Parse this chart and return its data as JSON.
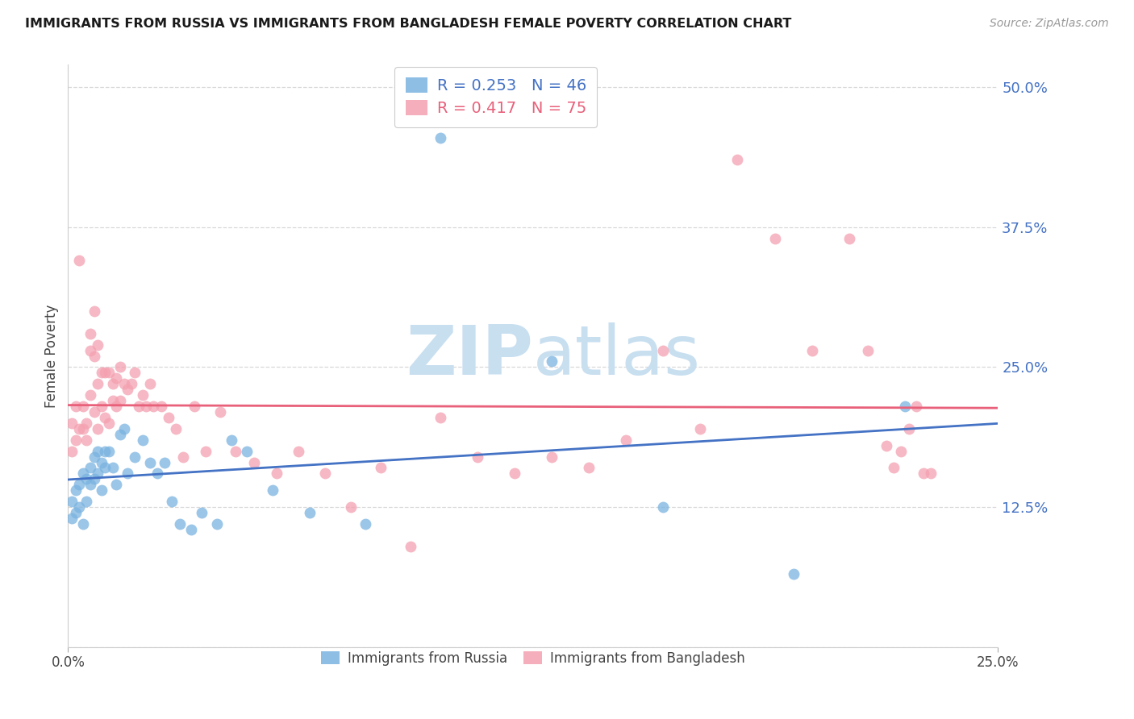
{
  "title": "IMMIGRANTS FROM RUSSIA VS IMMIGRANTS FROM BANGLADESH FEMALE POVERTY CORRELATION CHART",
  "source": "Source: ZipAtlas.com",
  "ylabel": "Female Poverty",
  "yticks": [
    0.0,
    0.125,
    0.25,
    0.375,
    0.5
  ],
  "ytick_labels": [
    "",
    "12.5%",
    "25.0%",
    "37.5%",
    "50.0%"
  ],
  "xlim": [
    0.0,
    0.25
  ],
  "ylim": [
    0.0,
    0.52
  ],
  "russia_R": 0.253,
  "russia_N": 46,
  "bangladesh_R": 0.417,
  "bangladesh_N": 75,
  "russia_color": "#7ab3e0",
  "bangladesh_color": "#f4a0b0",
  "russia_line_color": "#4472c4",
  "bangladesh_line_color": "#e8607a",
  "watermark_color": "#c8dff0",
  "background_color": "#ffffff",
  "grid_color": "#d8d8d8",
  "ytick_color": "#4472c4",
  "russia_scatter_x": [
    0.001,
    0.001,
    0.002,
    0.002,
    0.003,
    0.003,
    0.004,
    0.004,
    0.005,
    0.005,
    0.006,
    0.006,
    0.007,
    0.007,
    0.008,
    0.008,
    0.009,
    0.009,
    0.01,
    0.01,
    0.011,
    0.012,
    0.013,
    0.014,
    0.015,
    0.016,
    0.018,
    0.02,
    0.022,
    0.024,
    0.026,
    0.028,
    0.03,
    0.033,
    0.036,
    0.04,
    0.044,
    0.048,
    0.055,
    0.065,
    0.08,
    0.1,
    0.13,
    0.16,
    0.195,
    0.225
  ],
  "russia_scatter_y": [
    0.13,
    0.115,
    0.14,
    0.12,
    0.145,
    0.125,
    0.155,
    0.11,
    0.15,
    0.13,
    0.16,
    0.145,
    0.17,
    0.15,
    0.155,
    0.175,
    0.14,
    0.165,
    0.175,
    0.16,
    0.175,
    0.16,
    0.145,
    0.19,
    0.195,
    0.155,
    0.17,
    0.185,
    0.165,
    0.155,
    0.165,
    0.13,
    0.11,
    0.105,
    0.12,
    0.11,
    0.185,
    0.175,
    0.14,
    0.12,
    0.11,
    0.455,
    0.255,
    0.125,
    0.065,
    0.215
  ],
  "bangladesh_scatter_x": [
    0.001,
    0.001,
    0.002,
    0.002,
    0.003,
    0.003,
    0.004,
    0.004,
    0.005,
    0.005,
    0.006,
    0.006,
    0.006,
    0.007,
    0.007,
    0.007,
    0.008,
    0.008,
    0.008,
    0.009,
    0.009,
    0.01,
    0.01,
    0.011,
    0.011,
    0.012,
    0.012,
    0.013,
    0.013,
    0.014,
    0.014,
    0.015,
    0.016,
    0.017,
    0.018,
    0.019,
    0.02,
    0.021,
    0.022,
    0.023,
    0.025,
    0.027,
    0.029,
    0.031,
    0.034,
    0.037,
    0.041,
    0.045,
    0.05,
    0.056,
    0.062,
    0.069,
    0.076,
    0.084,
    0.092,
    0.1,
    0.11,
    0.12,
    0.13,
    0.14,
    0.15,
    0.16,
    0.17,
    0.18,
    0.19,
    0.2,
    0.21,
    0.215,
    0.22,
    0.222,
    0.224,
    0.226,
    0.228,
    0.23,
    0.232
  ],
  "bangladesh_scatter_y": [
    0.2,
    0.175,
    0.215,
    0.185,
    0.345,
    0.195,
    0.215,
    0.195,
    0.2,
    0.185,
    0.28,
    0.265,
    0.225,
    0.3,
    0.26,
    0.21,
    0.27,
    0.235,
    0.195,
    0.245,
    0.215,
    0.245,
    0.205,
    0.245,
    0.2,
    0.235,
    0.22,
    0.24,
    0.215,
    0.25,
    0.22,
    0.235,
    0.23,
    0.235,
    0.245,
    0.215,
    0.225,
    0.215,
    0.235,
    0.215,
    0.215,
    0.205,
    0.195,
    0.17,
    0.215,
    0.175,
    0.21,
    0.175,
    0.165,
    0.155,
    0.175,
    0.155,
    0.125,
    0.16,
    0.09,
    0.205,
    0.17,
    0.155,
    0.17,
    0.16,
    0.185,
    0.265,
    0.195,
    0.435,
    0.365,
    0.265,
    0.365,
    0.265,
    0.18,
    0.16,
    0.175,
    0.195,
    0.215,
    0.155,
    0.155
  ]
}
